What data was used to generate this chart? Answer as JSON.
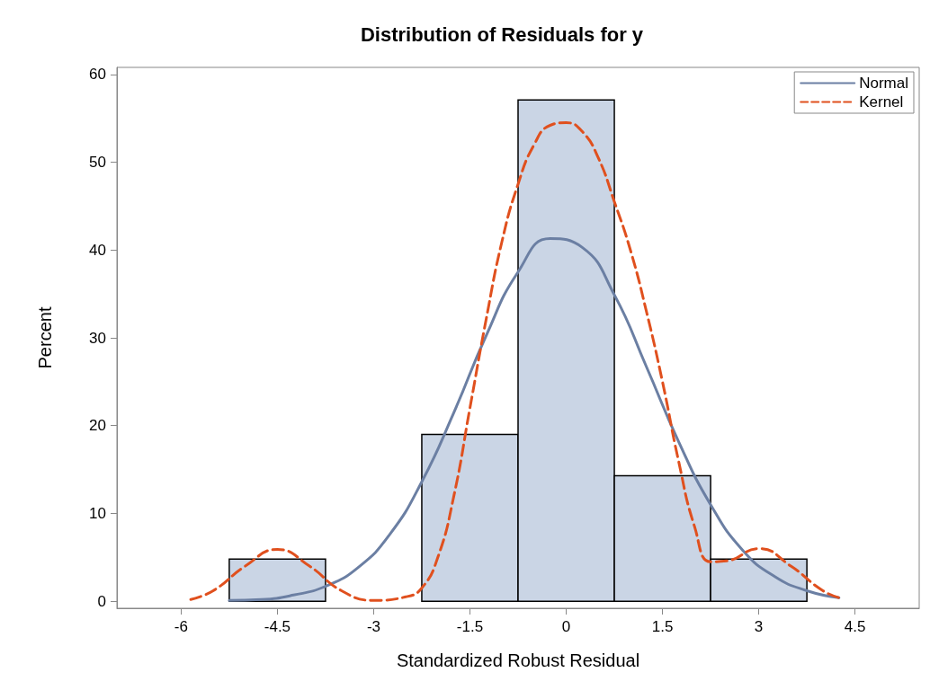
{
  "chart_data": {
    "type": "histogram",
    "title": "Distribution of Residuals for y",
    "xlabel": "Standardized Robust Residual",
    "ylabel": "Percent",
    "bins": [
      -5.25,
      -3.75,
      -2.25,
      -0.75,
      0.75,
      2.25,
      3.75
    ],
    "values": [
      4.8,
      0,
      19,
      57.1,
      14.3,
      4.8
    ],
    "color": "#cad5e5",
    "xlim": [
      -7,
      5.5
    ],
    "xticks": [
      -6,
      -4.5,
      -3,
      -1.5,
      0,
      1.5,
      3,
      4.5
    ],
    "ylim": [
      -0.8,
      60.8
    ],
    "yticks": [
      0,
      10,
      20,
      30,
      40,
      50,
      60
    ],
    "grid": false,
    "legend": "top right",
    "series": [
      {
        "name": "Normal",
        "type": "line",
        "color": "#6b7fa3",
        "line_style": "solid",
        "x": [
          -5.25,
          -4.75,
          -4.25,
          -3.75,
          -3.25,
          -2.75,
          -2.25,
          -1.75,
          -1.25,
          -0.75,
          -0.25,
          0.25,
          0.75,
          1.25,
          1.75,
          2.25,
          2.75,
          3.25,
          3.75,
          4.25
        ],
        "values": [
          0.1,
          0.2,
          0.7,
          1.7,
          3.8,
          7.6,
          13.6,
          21.5,
          30.2,
          37.5,
          41.3,
          40.3,
          34.9,
          26.7,
          18.2,
          11,
          5.8,
          2.8,
          1.2,
          0.4
        ]
      },
      {
        "name": "Kernel",
        "type": "line",
        "color": "#e0501e",
        "line_style": "dashed",
        "x": [
          -5.85,
          -5.5,
          -5,
          -4.5,
          -4,
          -3.5,
          -3,
          -2.5,
          -2.25,
          -2,
          -1.75,
          -1.5,
          -1.25,
          -1,
          -0.75,
          -0.5,
          -0.25,
          0,
          0.25,
          0.5,
          0.75,
          1,
          1.25,
          1.5,
          1.75,
          2,
          2.25,
          2.5,
          3,
          3.5,
          4,
          4.3
        ],
        "values": [
          0.2,
          1.2,
          4,
          5.9,
          4,
          1.2,
          0.1,
          0.5,
          1.5,
          5,
          12,
          22,
          32,
          41,
          47.5,
          52,
          54.2,
          54.5,
          53.5,
          50.5,
          45.5,
          40,
          33,
          25,
          16,
          8.5,
          4.5,
          4.6,
          6,
          4,
          1.2,
          0.3
        ]
      }
    ]
  }
}
